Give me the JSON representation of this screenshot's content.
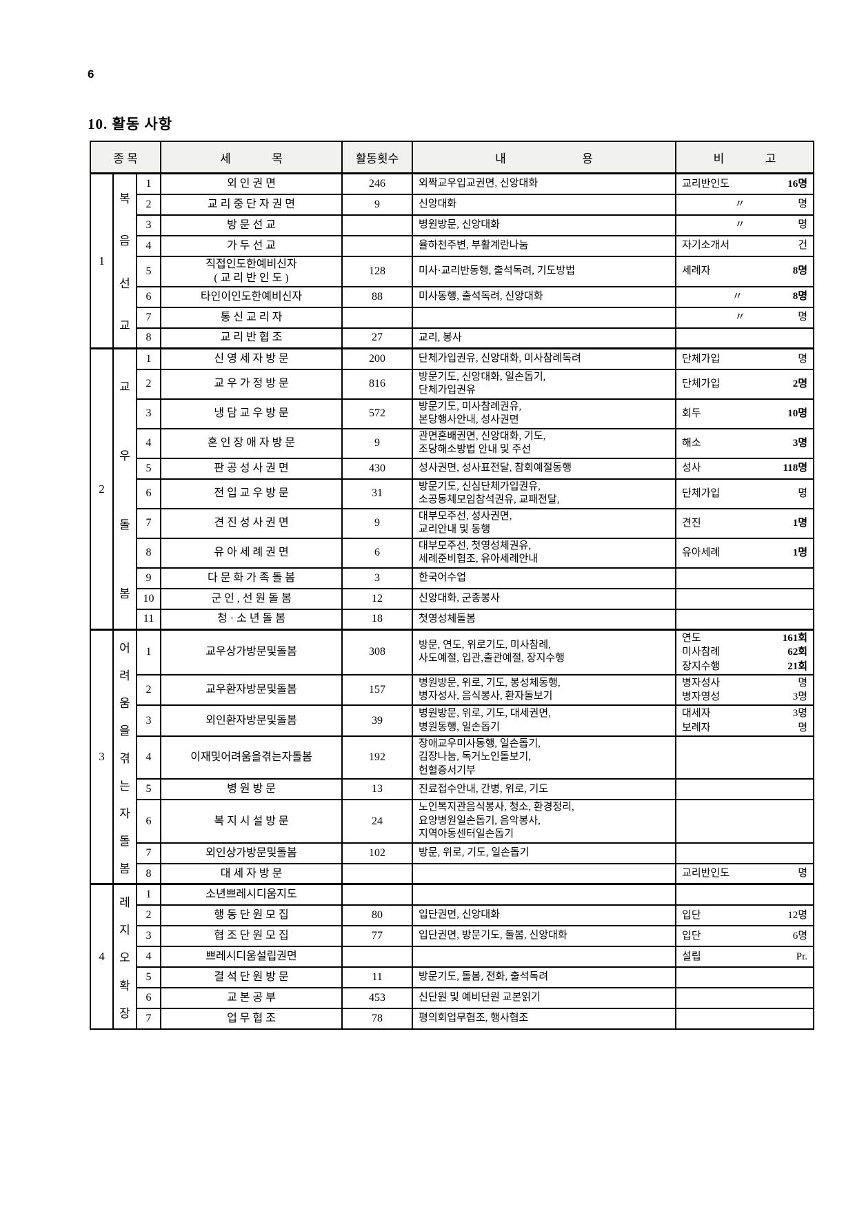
{
  "page_number": "6",
  "heading": "10. 활동 사항",
  "table": {
    "headers": {
      "category": "종 목",
      "item": "세              목",
      "count": "활동횟수",
      "content": "내                          용",
      "remark": "비              고"
    },
    "sections": [
      {
        "no": "1",
        "label": "복음선교",
        "rows": [
          {
            "no": "1",
            "title": "외   인   권   면",
            "count": "246",
            "content": "외짝교우입교권면, 신앙대화",
            "remark": [
              {
                "label": "교리반인도",
                "value": "16명",
                "bold": true
              }
            ]
          },
          {
            "no": "2",
            "title": "교 리 중 단 자 권 면",
            "count": "9",
            "content": "신앙대화",
            "remark": [
              {
                "label": "〃",
                "value": "명"
              }
            ]
          },
          {
            "no": "3",
            "title": "방   문   선   교",
            "count": "",
            "content": "병원방문, 신앙대화",
            "remark": [
              {
                "label": "〃",
                "value": "명"
              }
            ]
          },
          {
            "no": "4",
            "title": "가   두   선   교",
            "count": "",
            "content": "율하천주변, 부활계란나눔",
            "remark": [
              {
                "label": "자기소개서",
                "value": "건"
              }
            ]
          },
          {
            "no": "5",
            "title": "직접인도한예비신자\n( 교 리 반 인 도 )",
            "count": "128",
            "content": "미사·교리반동행, 출석독려, 기도방법",
            "remark": [
              {
                "label": "세례자",
                "value": "8명",
                "bold": true
              }
            ]
          },
          {
            "no": "6",
            "title": "타인이인도한예비신자",
            "count": "88",
            "content": "미사동행, 출석독려, 신앙대화",
            "remark": [
              {
                "label": "〃",
                "value": "8명",
                "bold": true
              }
            ]
          },
          {
            "no": "7",
            "title": "통  신  교  리  자",
            "count": "",
            "content": "",
            "remark": [
              {
                "label": "〃",
                "value": "명"
              }
            ]
          },
          {
            "no": "8",
            "title": "교  리  반  협  조",
            "count": "27",
            "content": "교리, 봉사",
            "remark": []
          }
        ]
      },
      {
        "no": "2",
        "label": "교우돌봄",
        "rows": [
          {
            "no": "1",
            "title": "신 영 세 자 방 문",
            "count": "200",
            "content": "단체가입권유, 신앙대화, 미사참례독려",
            "remark": [
              {
                "label": "단체가입",
                "value": "명"
              }
            ]
          },
          {
            "no": "2",
            "title": "교 우 가 정 방 문",
            "count": "816",
            "content": "방문기도, 신앙대화, 일손돕기,\n단체가입권유",
            "remark": [
              {
                "label": "단체가입",
                "value": "2명",
                "bold": true
              }
            ]
          },
          {
            "no": "3",
            "title": "냉 담 교 우 방 문",
            "count": "572",
            "content": "방문기도, 미사참례권유,\n본당행사안내, 성사권면",
            "remark": [
              {
                "label": "회두",
                "value": "10명",
                "bold": true
              }
            ]
          },
          {
            "no": "4",
            "title": "혼 인 장 애 자 방 문",
            "count": "9",
            "content": "관면혼배권면, 신앙대화, 기도,\n조당해소방법 안내 및 주선",
            "remark": [
              {
                "label": "해소",
                "value": "3명",
                "bold": true
              }
            ]
          },
          {
            "no": "5",
            "title": "판 공 성 사 권 면",
            "count": "430",
            "content": "성사권면, 성사표전달, 참회예절동행",
            "remark": [
              {
                "label": "성사",
                "value": "118명",
                "bold": true
              }
            ]
          },
          {
            "no": "6",
            "title": "전 입 교 우 방 문",
            "count": "31",
            "content": "방문기도,  신심단체가입권유,\n소공동체모임참석권유, 교패전달,",
            "remark": [
              {
                "label": "단체가입",
                "value": "명"
              }
            ]
          },
          {
            "no": "7",
            "title": "견 진 성 사 권 면",
            "count": "9",
            "content": "대부모주선, 성사권면,\n교리안내 및 동행",
            "remark": [
              {
                "label": "견진",
                "value": "1명",
                "bold": true
              }
            ]
          },
          {
            "no": "8",
            "title": "유 아 세 례 권 면",
            "count": "6",
            "content": "대부모주선, 첫영성체권유,\n세례준비협조, 유아세례안내",
            "remark": [
              {
                "label": "유아세례",
                "value": "1명",
                "bold": true
              }
            ]
          },
          {
            "no": "9",
            "title": "다 문 화 가 족 돌 봄",
            "count": "3",
            "content": "한국어수업",
            "remark": []
          },
          {
            "no": "10",
            "title": "군 인 ,  선 원 돌 봄",
            "count": "12",
            "content": "신앙대화, 군종봉사",
            "remark": []
          },
          {
            "no": "11",
            "title": "청  ·  소 년 돌 봄",
            "count": "18",
            "content": "첫영성체돌봄",
            "remark": []
          }
        ]
      },
      {
        "no": "3",
        "label": "어려움을겪는자돌봄",
        "rows": [
          {
            "no": "1",
            "title": "교우상가방문및돌봄",
            "count": "308",
            "content": "방문, 연도, 위로기도, 미사참례,\n사도예절, 입관,출관예절, 장지수행",
            "remark": [
              {
                "label": "연도",
                "value": "161회",
                "bold": true
              },
              {
                "label": "미사참례",
                "value": "62회",
                "bold": true
              },
              {
                "label": "장지수행",
                "value": "21회",
                "bold": true
              }
            ]
          },
          {
            "no": "2",
            "title": "교우환자방문및돌봄",
            "count": "157",
            "content": "병원방문, 위로, 기도, 봉성체동행,\n병자성사, 음식봉사, 환자돌보기",
            "remark": [
              {
                "label": "병자성사",
                "value": "명"
              },
              {
                "label": "병자영성",
                "value": "3명"
              }
            ]
          },
          {
            "no": "3",
            "title": "외인환자방문및돌봄",
            "count": "39",
            "content": "병원방문, 위로, 기도, 대세권면,\n병원동행, 일손돕기",
            "remark": [
              {
                "label": "대세자",
                "value": "3명"
              },
              {
                "label": "보례자",
                "value": "명"
              }
            ]
          },
          {
            "no": "4",
            "title": "이재및어려움을겪는자돌봄",
            "count": "192",
            "content": "장애교우미사동행, 일손돕기,\n김장나눔, 독거노인돌보기,\n헌혈증서기부",
            "remark": []
          },
          {
            "no": "5",
            "title": "병   원   방   문",
            "count": "13",
            "content": "진료접수안내, 간병, 위로, 기도",
            "remark": []
          },
          {
            "no": "6",
            "title": "복 지 시 설 방 문",
            "count": "24",
            "content": "노인복지관음식봉사, 청소, 환경정리,\n요양병원일손돕기, 음악봉사,\n지역아동센터일손돕기",
            "remark": []
          },
          {
            "no": "7",
            "title": "외인상가방문및돌봄",
            "count": "102",
            "content": "방문, 위로, 기도, 일손돕기",
            "remark": []
          },
          {
            "no": "8",
            "title": "대  세  자  방  문",
            "count": "",
            "content": "",
            "remark": [
              {
                "label": "교리반인도",
                "value": "명"
              }
            ]
          }
        ]
      },
      {
        "no": "4",
        "label": "레지오확장",
        "rows": [
          {
            "no": "1",
            "title": "소년쁘레시디움지도",
            "count": "",
            "content": "",
            "remark": []
          },
          {
            "no": "2",
            "title": "행 동 단 원 모 집",
            "count": "80",
            "content": "입단권면, 신앙대화",
            "remark": [
              {
                "label": "입단",
                "value": "12명"
              }
            ]
          },
          {
            "no": "3",
            "title": "협 조 단 원 모 집",
            "count": "77",
            "content": "입단권면, 방문기도, 돌봄, 신앙대화",
            "remark": [
              {
                "label": "입단",
                "value": "6명"
              }
            ]
          },
          {
            "no": "4",
            "title": "쁘레시디움설립권면",
            "count": "",
            "content": "",
            "remark": [
              {
                "label": "설립",
                "value": "Pr."
              }
            ]
          },
          {
            "no": "5",
            "title": "결 석 단 원 방 문",
            "count": "11",
            "content": "방문기도, 돌봄, 전화, 출석독려",
            "remark": []
          },
          {
            "no": "6",
            "title": "교   본   공   부",
            "count": "453",
            "content": "신단원 및 예비단원 교본읽기",
            "remark": []
          },
          {
            "no": "7",
            "title": "업   무   협   조",
            "count": "78",
            "content": "평의회업무협조, 행사협조",
            "remark": []
          }
        ]
      }
    ]
  }
}
